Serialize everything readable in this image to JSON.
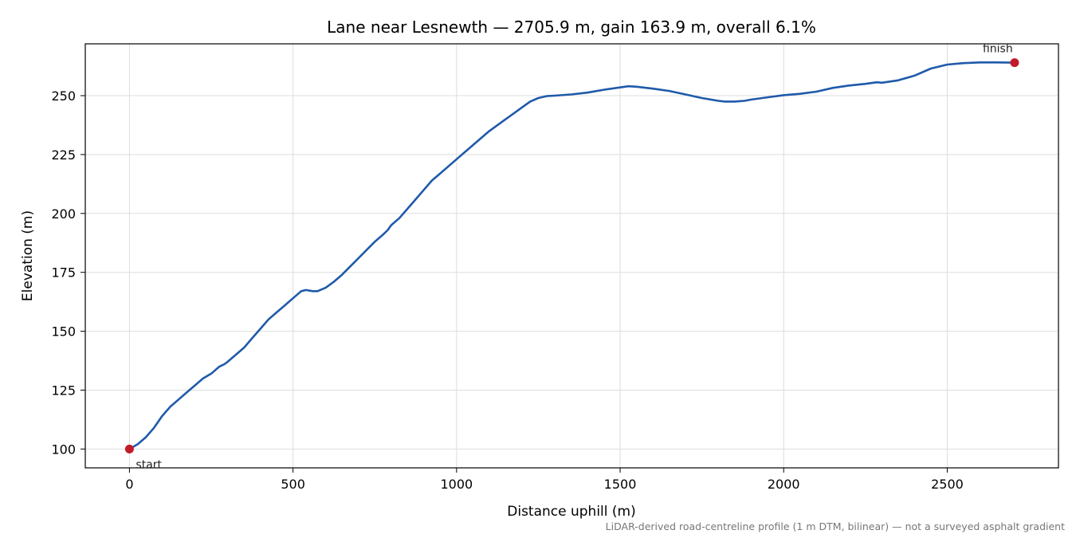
{
  "chart_data": {
    "type": "line",
    "title": "Lane near Lesnewth — 2705.9 m, gain 163.9 m, overall 6.1%",
    "xlabel": "Distance uphill (m)",
    "ylabel": "Elevation (m)",
    "xlim": [
      -135,
      2840
    ],
    "ylim": [
      92,
      272
    ],
    "xticks": [
      0,
      500,
      1000,
      1500,
      2000,
      2500
    ],
    "yticks": [
      100,
      125,
      150,
      175,
      200,
      225,
      250
    ],
    "grid": true,
    "line_color": "#1f5aaa",
    "marker_color": "#c21a2a",
    "series": [
      {
        "x": [
          0,
          25,
          50,
          75,
          100,
          125,
          150,
          175,
          200,
          225,
          250,
          275,
          290,
          300,
          325,
          350,
          375,
          400,
          425,
          450,
          475,
          500,
          525,
          540,
          560,
          575,
          600,
          625,
          650,
          675,
          700,
          725,
          750,
          775,
          790,
          800,
          825,
          850,
          875,
          900,
          925,
          950,
          975,
          1000,
          1050,
          1100,
          1150,
          1200,
          1225,
          1250,
          1275,
          1300,
          1350,
          1400,
          1450,
          1500,
          1525,
          1550,
          1600,
          1650,
          1700,
          1750,
          1800,
          1820,
          1850,
          1880,
          1900,
          1950,
          2000,
          2050,
          2100,
          2150,
          2200,
          2250,
          2285,
          2300,
          2350,
          2400,
          2450,
          2500,
          2550,
          2600,
          2650,
          2705.9
        ],
        "y": [
          100,
          102,
          105,
          109,
          114,
          118,
          121,
          124,
          127,
          130,
          132,
          135,
          136,
          137,
          140,
          143,
          147,
          151,
          155,
          158,
          161,
          164,
          167,
          167.5,
          167,
          167,
          168.5,
          171,
          174,
          177.5,
          181,
          184.5,
          188,
          191,
          193,
          195,
          198,
          202,
          206,
          210,
          214,
          217,
          220,
          223,
          229,
          235,
          240,
          245,
          247.5,
          249,
          249.8,
          250,
          250.5,
          251.3,
          252.5,
          253.5,
          254,
          253.8,
          253,
          252,
          250.5,
          249,
          247.8,
          247.5,
          247.5,
          247.8,
          248.3,
          249.3,
          250.2,
          250.8,
          251.7,
          253.3,
          254.3,
          255,
          255.7,
          255.5,
          256.5,
          258.5,
          261.5,
          263.2,
          263.8,
          264.1,
          264.1,
          264
        ]
      }
    ],
    "points": [
      {
        "label": "start",
        "x": 0,
        "y": 100
      },
      {
        "label": "finish",
        "x": 2705.9,
        "y": 264
      }
    ],
    "note": "LiDAR-derived road-centreline profile (1 m DTM, bilinear) — not a surveyed asphalt gradient"
  }
}
